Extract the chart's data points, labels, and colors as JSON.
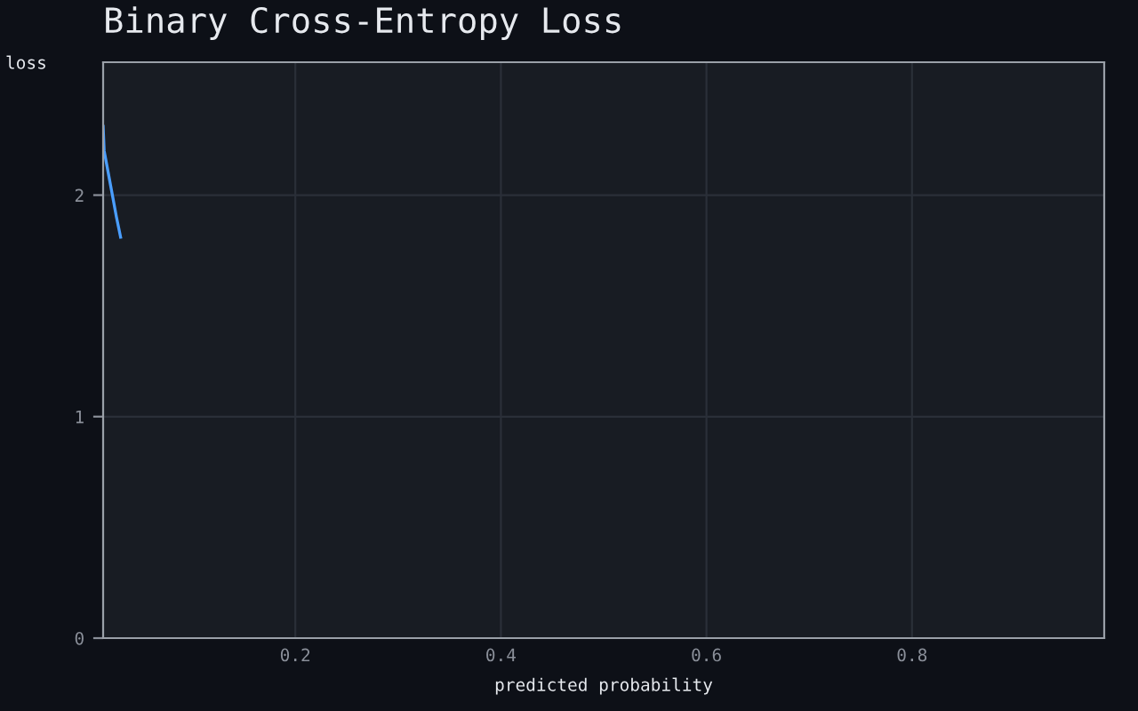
{
  "chart_data": {
    "type": "line",
    "title": "Binary Cross-Entropy Loss",
    "xlabel": "predicted probability",
    "ylabel": "loss",
    "x": [
      0.013,
      0.014,
      0.018,
      0.022,
      0.026,
      0.03
    ],
    "series": [
      {
        "color": "#4a9eff",
        "values": [
          2.31,
          2.2,
          2.1,
          2.0,
          1.9,
          1.81
        ]
      }
    ],
    "xlim": [
      0.013,
      0.987
    ],
    "ylim": [
      0,
      2.6
    ],
    "xticks": [
      0.2,
      0.4,
      0.6,
      0.8
    ],
    "yticks": [
      0,
      1,
      2
    ],
    "grid": true,
    "marker": "none",
    "line_style": "solid"
  }
}
